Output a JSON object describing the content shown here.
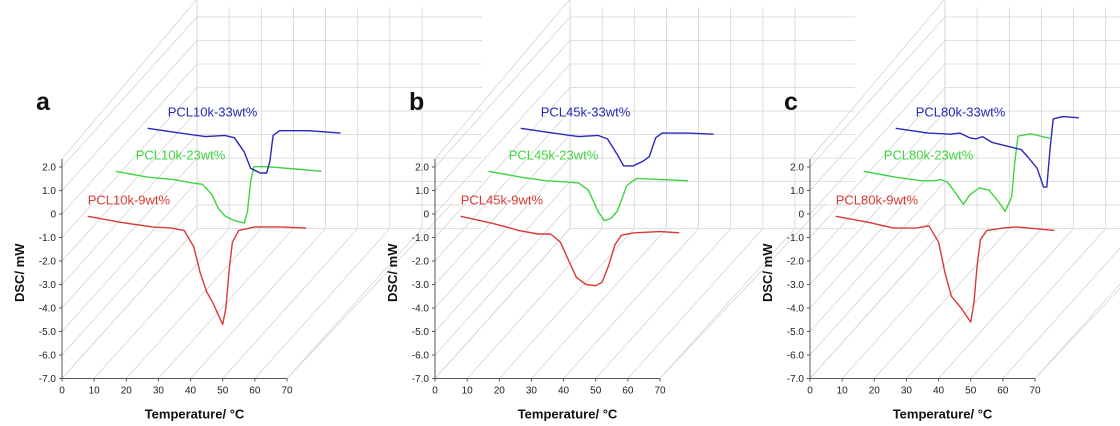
{
  "colors": {
    "s1": "#d93a36",
    "s2": "#3fd43f",
    "s3": "#2929b8",
    "text": "#111111"
  },
  "chart_data": [
    {
      "type": "line",
      "panel": "a",
      "ylabel": "DSC/ mW",
      "xlabel": "Temperature/ °C",
      "x_ticks": [
        "0",
        "10",
        "20",
        "30",
        "40",
        "50",
        "60",
        "70"
      ],
      "y_ticks": [
        "2.0",
        "1.0",
        "0",
        "-1.0",
        "-2.0",
        "-3.0",
        "-4.0",
        "-5.0",
        "-6.0",
        "-7.0"
      ],
      "xlim": [
        0,
        70
      ],
      "ylim": [
        -7,
        2
      ],
      "series": [
        {
          "name": "PCL10k-9wt%",
          "color": "#d93a36",
          "points": [
            [
              8,
              -0.1
            ],
            [
              18,
              -0.35
            ],
            [
              28,
              -0.55
            ],
            [
              34,
              -0.6
            ],
            [
              38,
              -0.7
            ],
            [
              41,
              -1.4
            ],
            [
              43,
              -2.5
            ],
            [
              45,
              -3.3
            ],
            [
              47,
              -3.8
            ],
            [
              49,
              -4.4
            ],
            [
              50,
              -4.7
            ],
            [
              51,
              -4.0
            ],
            [
              52,
              -2.4
            ],
            [
              53,
              -1.2
            ],
            [
              55,
              -0.7
            ],
            [
              60,
              -0.55
            ],
            [
              68,
              -0.55
            ],
            [
              76,
              -0.6
            ]
          ]
        },
        {
          "name": "PCL10k-23wt%",
          "color": "#3fd43f",
          "points": [
            [
              8,
              -0.1
            ],
            [
              18,
              -0.35
            ],
            [
              26,
              -0.45
            ],
            [
              32,
              -0.6
            ],
            [
              35,
              -0.65
            ],
            [
              38,
              -1.1
            ],
            [
              40,
              -1.7
            ],
            [
              42,
              -2.0
            ],
            [
              45,
              -2.2
            ],
            [
              48,
              -2.3
            ],
            [
              49,
              -1.8
            ],
            [
              50,
              -0.5
            ],
            [
              51,
              0.1
            ],
            [
              55,
              0.1
            ],
            [
              64,
              0.0
            ],
            [
              72,
              -0.1
            ]
          ]
        },
        {
          "name": "PCL10k-33wt%",
          "color": "#2929b8",
          "points": [
            [
              8,
              -0.1
            ],
            [
              18,
              -0.3
            ],
            [
              26,
              -0.45
            ],
            [
              32,
              -0.4
            ],
            [
              35,
              -0.5
            ],
            [
              38,
              -1.1
            ],
            [
              40,
              -1.8
            ],
            [
              43,
              -2.0
            ],
            [
              45,
              -2.0
            ],
            [
              46,
              -1.5
            ],
            [
              47,
              -0.4
            ],
            [
              49,
              -0.2
            ],
            [
              58,
              -0.2
            ],
            [
              68,
              -0.3
            ]
          ]
        }
      ]
    },
    {
      "type": "line",
      "panel": "b",
      "ylabel": "DSC/ mW",
      "xlabel": "Temperature/ °C",
      "x_ticks": [
        "0",
        "10",
        "20",
        "30",
        "40",
        "50",
        "60",
        "70"
      ],
      "y_ticks": [
        "2.0",
        "1.0",
        "0",
        "-1.0",
        "-2.0",
        "-3.0",
        "-4.0",
        "-5.0",
        "-6.0",
        "-7.0"
      ],
      "xlim": [
        0,
        70
      ],
      "ylim": [
        -7,
        2
      ],
      "series": [
        {
          "name": "PCL45k-9wt%",
          "color": "#d93a36",
          "points": [
            [
              8,
              -0.1
            ],
            [
              18,
              -0.4
            ],
            [
              26,
              -0.7
            ],
            [
              32,
              -0.85
            ],
            [
              36,
              -0.85
            ],
            [
              39,
              -1.2
            ],
            [
              42,
              -2.1
            ],
            [
              44,
              -2.7
            ],
            [
              47,
              -3.0
            ],
            [
              50,
              -3.05
            ],
            [
              52,
              -2.9
            ],
            [
              54,
              -2.2
            ],
            [
              56,
              -1.3
            ],
            [
              58,
              -0.9
            ],
            [
              62,
              -0.8
            ],
            [
              70,
              -0.75
            ],
            [
              76,
              -0.8
            ]
          ]
        },
        {
          "name": "PCL45k-23wt%",
          "color": "#3fd43f",
          "points": [
            [
              8,
              -0.1
            ],
            [
              18,
              -0.35
            ],
            [
              26,
              -0.5
            ],
            [
              32,
              -0.55
            ],
            [
              36,
              -0.6
            ],
            [
              39,
              -0.9
            ],
            [
              42,
              -1.8
            ],
            [
              44,
              -2.2
            ],
            [
              46,
              -2.1
            ],
            [
              48,
              -1.8
            ],
            [
              51,
              -0.7
            ],
            [
              54,
              -0.4
            ],
            [
              62,
              -0.45
            ],
            [
              70,
              -0.5
            ]
          ]
        },
        {
          "name": "PCL45k-33wt%",
          "color": "#2929b8",
          "points": [
            [
              8,
              -0.1
            ],
            [
              18,
              -0.3
            ],
            [
              26,
              -0.45
            ],
            [
              32,
              -0.4
            ],
            [
              35,
              -0.55
            ],
            [
              38,
              -1.2
            ],
            [
              40,
              -1.7
            ],
            [
              43,
              -1.7
            ],
            [
              46,
              -1.5
            ],
            [
              48,
              -1.3
            ],
            [
              50,
              -0.5
            ],
            [
              52,
              -0.3
            ],
            [
              60,
              -0.3
            ],
            [
              68,
              -0.35
            ]
          ]
        }
      ]
    },
    {
      "type": "line",
      "panel": "c",
      "ylabel": "DSC/ mW",
      "xlabel": "Temperature/ °C",
      "x_ticks": [
        "0",
        "10",
        "20",
        "30",
        "40",
        "50",
        "60",
        "70"
      ],
      "y_ticks": [
        "2.0",
        "1.0",
        "0",
        "-1.0",
        "-2.0",
        "-3.0",
        "-4.0",
        "-5.0",
        "-6.0",
        "-7.0"
      ],
      "xlim": [
        0,
        70
      ],
      "ylim": [
        -7,
        2
      ],
      "series": [
        {
          "name": "PCL80k-9wt%",
          "color": "#d93a36",
          "points": [
            [
              8,
              -0.1
            ],
            [
              18,
              -0.35
            ],
            [
              26,
              -0.6
            ],
            [
              33,
              -0.6
            ],
            [
              37,
              -0.5
            ],
            [
              40,
              -1.2
            ],
            [
              42,
              -2.5
            ],
            [
              44,
              -3.5
            ],
            [
              47,
              -4.0
            ],
            [
              49,
              -4.4
            ],
            [
              50,
              -4.6
            ],
            [
              51,
              -3.8
            ],
            [
              52,
              -2.2
            ],
            [
              53,
              -1.1
            ],
            [
              55,
              -0.7
            ],
            [
              60,
              -0.6
            ],
            [
              64,
              -0.55
            ],
            [
              68,
              -0.6
            ],
            [
              76,
              -0.7
            ]
          ]
        },
        {
          "name": "PCL80k-23wt%",
          "color": "#3fd43f",
          "points": [
            [
              8,
              -0.1
            ],
            [
              18,
              -0.35
            ],
            [
              26,
              -0.5
            ],
            [
              30,
              -0.5
            ],
            [
              32,
              -0.45
            ],
            [
              34,
              -0.55
            ],
            [
              37,
              -1.1
            ],
            [
              39,
              -1.5
            ],
            [
              41,
              -1.1
            ],
            [
              44,
              -0.8
            ],
            [
              47,
              -0.9
            ],
            [
              50,
              -1.4
            ],
            [
              52,
              -1.8
            ],
            [
              54,
              -1.2
            ],
            [
              55,
              0.3
            ],
            [
              56,
              1.4
            ],
            [
              60,
              1.5
            ],
            [
              66,
              1.3
            ]
          ]
        },
        {
          "name": "PCL80k-33wt%",
          "color": "#2929b8",
          "points": [
            [
              8,
              -0.1
            ],
            [
              18,
              -0.3
            ],
            [
              25,
              -0.35
            ],
            [
              28,
              -0.3
            ],
            [
              31,
              -0.5
            ],
            [
              33,
              -0.55
            ],
            [
              35,
              -0.45
            ],
            [
              38,
              -0.7
            ],
            [
              41,
              -0.8
            ],
            [
              44,
              -0.9
            ],
            [
              47,
              -1.0
            ],
            [
              49,
              -1.3
            ],
            [
              52,
              -1.8
            ],
            [
              54,
              -2.6
            ],
            [
              55,
              -2.6
            ],
            [
              56,
              -1.0
            ],
            [
              57,
              0.3
            ],
            [
              60,
              0.4
            ],
            [
              65,
              0.35
            ]
          ]
        }
      ]
    }
  ]
}
